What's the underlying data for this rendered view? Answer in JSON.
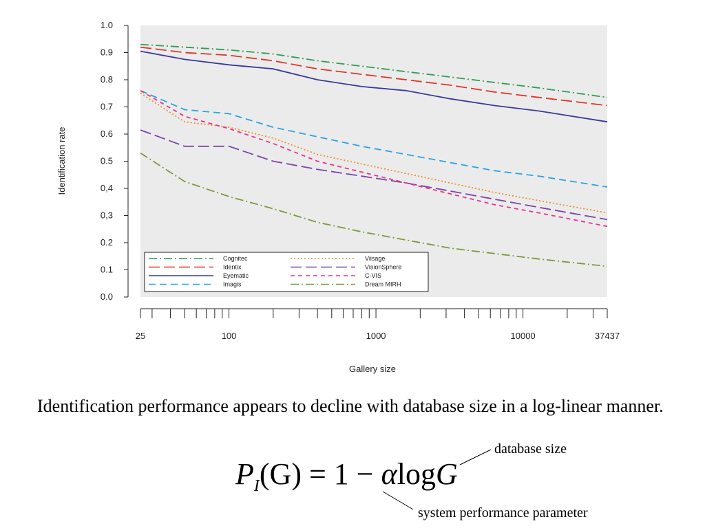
{
  "chart_data": {
    "type": "line",
    "title": "",
    "xlabel": "Gallery size",
    "ylabel": "Identification rate",
    "x_scale": "log",
    "xlim": [
      25,
      37437
    ],
    "ylim": [
      0.0,
      1.0
    ],
    "x_tick_labels": [
      {
        "value": 25,
        "label": "25"
      },
      {
        "value": 100,
        "label": "100"
      },
      {
        "value": 1000,
        "label": "1000"
      },
      {
        "value": 10000,
        "label": "10000"
      },
      {
        "value": 37437,
        "label": "37437"
      }
    ],
    "x_minor_ticks": [
      25,
      30,
      40,
      50,
      60,
      70,
      80,
      90,
      100,
      200,
      300,
      400,
      500,
      600,
      700,
      800,
      900,
      1000,
      2000,
      3000,
      4000,
      5000,
      6000,
      7000,
      8000,
      9000,
      10000,
      20000,
      30000,
      37437
    ],
    "y_tick_labels": [
      "0.0",
      "0.1",
      "0.2",
      "0,3",
      "0,4",
      "0.5",
      "0.6",
      "0.7",
      "0.8",
      "0.9",
      "1.0"
    ],
    "y_tick_values": [
      0.0,
      0.1,
      0.2,
      0.3,
      0.4,
      0.5,
      0.6,
      0.7,
      0.8,
      0.9,
      1.0
    ],
    "grid": false,
    "background": "#ebebeb",
    "legend_position": "bottom-left",
    "series": [
      {
        "name": "Cognitec",
        "color": "#2e9e55",
        "dash": "dashdot",
        "x": [
          25,
          50,
          100,
          200,
          400,
          800,
          1600,
          3200,
          6400,
          12800,
          37437
        ],
        "y": [
          0.93,
          0.92,
          0.91,
          0.895,
          0.87,
          0.85,
          0.83,
          0.81,
          0.79,
          0.77,
          0.735
        ]
      },
      {
        "name": "Identix",
        "color": "#e03428",
        "dash": "longdash",
        "x": [
          25,
          50,
          100,
          200,
          400,
          800,
          1600,
          3200,
          6400,
          12800,
          37437
        ],
        "y": [
          0.92,
          0.9,
          0.89,
          0.87,
          0.84,
          0.82,
          0.8,
          0.78,
          0.755,
          0.735,
          0.705
        ]
      },
      {
        "name": "Eyematic",
        "color": "#3a3a9a",
        "dash": "solid",
        "x": [
          25,
          50,
          100,
          200,
          400,
          800,
          1600,
          3200,
          6400,
          12800,
          37437
        ],
        "y": [
          0.905,
          0.875,
          0.855,
          0.84,
          0.8,
          0.775,
          0.76,
          0.73,
          0.705,
          0.685,
          0.645
        ]
      },
      {
        "name": "Imagis",
        "color": "#2aa3e0",
        "dash": "dashed",
        "x": [
          25,
          50,
          100,
          200,
          400,
          800,
          1600,
          3200,
          6400,
          12800,
          37437
        ],
        "y": [
          0.76,
          0.69,
          0.675,
          0.625,
          0.59,
          0.555,
          0.525,
          0.495,
          0.465,
          0.445,
          0.405
        ]
      },
      {
        "name": "Viisage",
        "color": "#ee8c2a",
        "dash": "dotted",
        "x": [
          25,
          50,
          100,
          200,
          400,
          800,
          1600,
          3200,
          6400,
          12800,
          37437
        ],
        "y": [
          0.75,
          0.645,
          0.625,
          0.585,
          0.525,
          0.49,
          0.455,
          0.42,
          0.385,
          0.355,
          0.31
        ]
      },
      {
        "name": "VisionSphere",
        "color": "#7b44a8",
        "dash": "longdash",
        "x": [
          25,
          50,
          100,
          200,
          400,
          800,
          1600,
          3200,
          6400,
          12800,
          37437
        ],
        "y": [
          0.615,
          0.555,
          0.555,
          0.5,
          0.47,
          0.445,
          0.42,
          0.39,
          0.36,
          0.33,
          0.285
        ]
      },
      {
        "name": "C-VIS",
        "color": "#e8338a",
        "dash": "shortdash",
        "x": [
          25,
          50,
          100,
          200,
          400,
          800,
          1600,
          3200,
          6400,
          12800,
          37437
        ],
        "y": [
          0.76,
          0.665,
          0.62,
          0.565,
          0.5,
          0.46,
          0.42,
          0.38,
          0.34,
          0.31,
          0.26
        ]
      },
      {
        "name": "Dream MIRH",
        "color": "#7a9a3a",
        "dash": "dashdot",
        "x": [
          25,
          50,
          100,
          200,
          400,
          800,
          1600,
          3200,
          6400,
          12800,
          37437
        ],
        "y": [
          0.53,
          0.425,
          0.37,
          0.325,
          0.275,
          0.24,
          0.21,
          0.18,
          0.16,
          0.14,
          0.113
        ]
      }
    ]
  },
  "caption": "Identification performance appears to decline with database size in a log-linear manner.",
  "formula": {
    "P": "P",
    "sub": "I",
    "G1": "(G)",
    "eq": " = 1 − ",
    "alpha": "α",
    "log": "log",
    "G2": "G"
  },
  "annotations": {
    "database_size": "database size",
    "system_parameter": "system performance parameter"
  }
}
